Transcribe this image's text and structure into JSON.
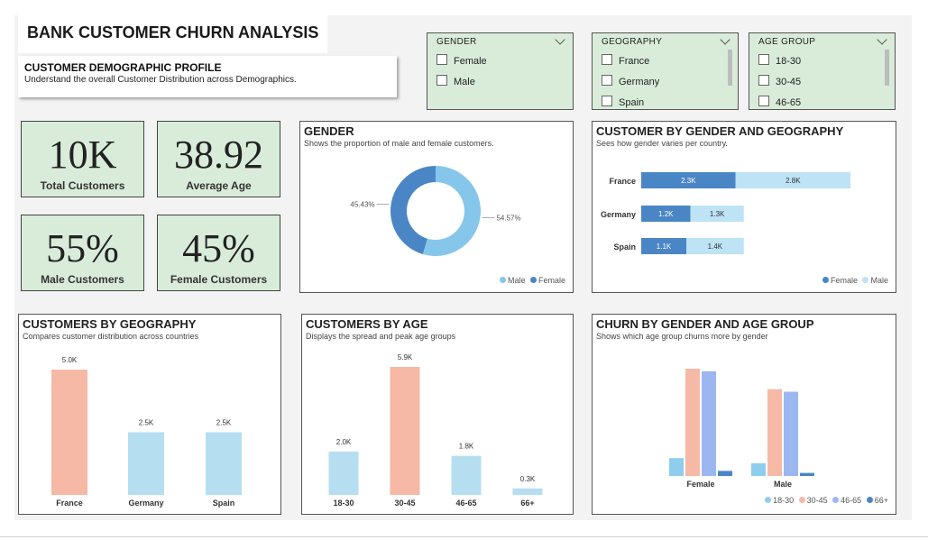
{
  "header": {
    "title": "BANK CUSTOMER CHURN ANALYSIS",
    "profile_heading": "CUSTOMER DEMOGRAPHIC PROFILE",
    "profile_subtitle": "Understand the overall Customer Distribution across Demographics."
  },
  "slicers": [
    {
      "label": "GENDER",
      "options": [
        "Female",
        "Male"
      ]
    },
    {
      "label": "GEOGRAPHY",
      "options": [
        "France",
        "Germany",
        "Spain"
      ]
    },
    {
      "label": "AGE GROUP",
      "options": [
        "18-30",
        "30-45",
        "46-65"
      ]
    }
  ],
  "kpis": [
    {
      "value": "10K",
      "label": "Total Customers"
    },
    {
      "value": "38.92",
      "label": "Average Age"
    },
    {
      "value": "55%",
      "label": "Male Customers"
    },
    {
      "value": "45%",
      "label": "Female Customers"
    }
  ],
  "colors": {
    "female": "#4a86c5",
    "male": "#86c6ea",
    "male_light": "#bde3f5",
    "salmon": "#f5b9a6",
    "light_blue": "#b6def1",
    "age_18_30": "#8fcdee",
    "age_30_45": "#f5b9a6",
    "age_46_65": "#9cb6f0",
    "age_66": "#4a86c5"
  },
  "chart_data": [
    {
      "type": "pie",
      "title": "GENDER",
      "subtitle": "Shows the proportion of male and female customers.",
      "slices": [
        {
          "name": "Male",
          "value": 54.57,
          "label": "54.57%"
        },
        {
          "name": "Female",
          "value": 45.43,
          "label": "45.43%"
        }
      ],
      "legend": [
        "Male",
        "Female"
      ],
      "legend_position": "bottom-right"
    },
    {
      "type": "bar",
      "orientation": "horizontal-stacked",
      "title": "CUSTOMER BY GENDER AND GEOGRAPHY",
      "subtitle": "Sees how gender varies per country.",
      "categories": [
        "France",
        "Germany",
        "Spain"
      ],
      "series": [
        {
          "name": "Female",
          "values": [
            2.3,
            1.2,
            1.1
          ],
          "labels": [
            "2.3K",
            "1.2K",
            "1.1K"
          ]
        },
        {
          "name": "Male",
          "values": [
            2.8,
            1.3,
            1.4
          ],
          "labels": [
            "2.8K",
            "1.3K",
            "1.4K"
          ]
        }
      ],
      "legend": [
        "Female",
        "Male"
      ],
      "legend_position": "bottom-right"
    },
    {
      "type": "bar",
      "title": "CUSTOMERS BY GEOGRAPHY",
      "subtitle": "Compares customer distribution across countries",
      "categories": [
        "France",
        "Germany",
        "Spain"
      ],
      "values": [
        5.0,
        2.5,
        2.5
      ],
      "labels": [
        "5.0K",
        "2.5K",
        "2.5K"
      ],
      "ylim": [
        0,
        5.0
      ]
    },
    {
      "type": "bar",
      "title": "CUSTOMERS BY AGE",
      "subtitle": "Displays the spread and peak age groups",
      "categories": [
        "18-30",
        "30-45",
        "46-65",
        "66+"
      ],
      "values": [
        2.0,
        5.9,
        1.8,
        0.3
      ],
      "labels": [
        "2.0K",
        "5.9K",
        "1.8K",
        "0.3K"
      ],
      "ylim": [
        0,
        5.9
      ]
    },
    {
      "type": "bar",
      "title": "CHURN BY GENDER AND AGE GROUP",
      "subtitle": "Shows which age group churns more by gender",
      "categories": [
        "Female",
        "Male"
      ],
      "series": [
        {
          "name": "18-30",
          "values": [
            7,
            5
          ]
        },
        {
          "name": "30-45",
          "values": [
            42,
            34
          ]
        },
        {
          "name": "46-65",
          "values": [
            41,
            33
          ]
        },
        {
          "name": "66+",
          "values": [
            2,
            1.2
          ]
        }
      ],
      "legend": [
        "18-30",
        "30-45",
        "46-65",
        "66+"
      ],
      "legend_position": "bottom-right",
      "ylim": [
        0,
        42
      ]
    }
  ]
}
